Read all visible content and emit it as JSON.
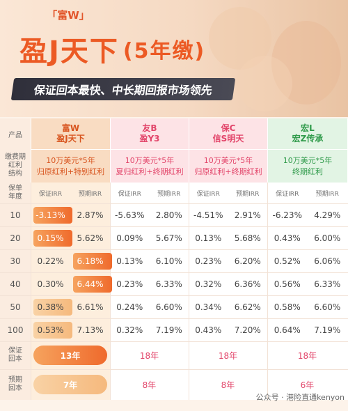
{
  "header": {
    "brand": "「富W」",
    "title": "盈J天下",
    "title_suffix": "(5年缴)",
    "subtitle": "保证回本最快、中长期回报市场领先"
  },
  "table": {
    "row_labels": {
      "product": "产品",
      "payment": "缴费期",
      "dividend": [
        "红利",
        "结构"
      ],
      "year": [
        "保单",
        "年度"
      ],
      "guaranteed_breakeven": [
        "保证",
        "回本"
      ],
      "expected_breakeven": [
        "预期",
        "回本"
      ]
    },
    "products": [
      {
        "company": "富W",
        "plan": "盈J天下",
        "payment": "10万美元*5年",
        "dividend": "归原红利+特别红利",
        "irr_headers": [
          "保证IRR",
          "预期IRR"
        ],
        "guaranteed_breakeven": "13年",
        "expected_breakeven": "7年"
      },
      {
        "company": "友B",
        "plan": "盈Y3",
        "payment": "10万美元*5年",
        "dividend": "夏归红利+终期红利",
        "irr_headers": [
          "保证IRR",
          "预期IRR"
        ],
        "guaranteed_breakeven": "18年",
        "expected_breakeven": "8年"
      },
      {
        "company": "保C",
        "plan": "信S明天",
        "payment": "10万美元*5年",
        "dividend": "归原红利+终期红利",
        "irr_headers": [
          "保证IRR",
          "预期IRR"
        ],
        "guaranteed_breakeven": "18年",
        "expected_breakeven": "8年"
      },
      {
        "company": "宏L",
        "plan": "宏Z传承",
        "payment": "10万美元*5年",
        "dividend": "终期红利",
        "irr_headers": [
          "保证IRR",
          "预期IRR"
        ],
        "guaranteed_breakeven": "18年",
        "expected_breakeven": "6年"
      }
    ],
    "years": [
      "10",
      "20",
      "30",
      "40",
      "50",
      "100"
    ],
    "rows": [
      [
        "-3.13%",
        "2.87%",
        "-5.63%",
        "2.80%",
        "-4.51%",
        "2.91%",
        "-6.23%",
        "4.29%"
      ],
      [
        "0.15%",
        "5.62%",
        "0.09%",
        "5.67%",
        "0.13%",
        "5.68%",
        "0.43%",
        "6.00%"
      ],
      [
        "0.22%",
        "6.18%",
        "0.13%",
        "6.10%",
        "0.23%",
        "6.20%",
        "0.52%",
        "6.06%"
      ],
      [
        "0.30%",
        "6.44%",
        "0.23%",
        "6.33%",
        "0.32%",
        "6.36%",
        "0.56%",
        "6.33%"
      ],
      [
        "0.38%",
        "6.61%",
        "0.24%",
        "6.60%",
        "0.34%",
        "6.62%",
        "0.58%",
        "6.60%"
      ],
      [
        "0.53%",
        "7.13%",
        "0.32%",
        "7.19%",
        "0.43%",
        "7.20%",
        "0.64%",
        "7.19%"
      ]
    ]
  },
  "watermark": "公众号 · 港险直通kenyon"
}
